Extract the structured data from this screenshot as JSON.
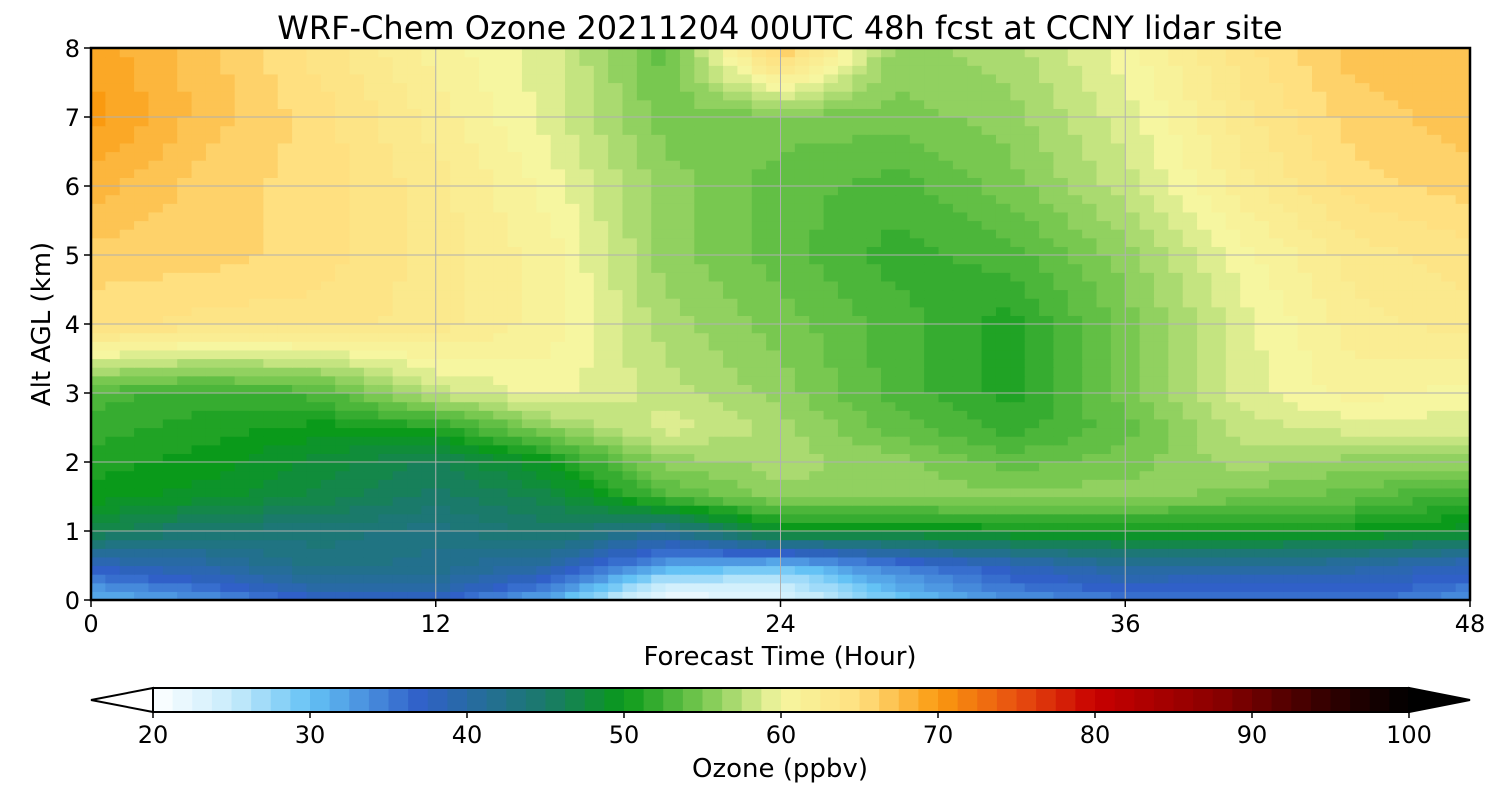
{
  "chart_data": {
    "type": "heatmap",
    "title": "WRF-Chem Ozone  20211204 00UTC 48h fcst at CCNY lidar site",
    "xlabel": "Forecast Time (Hour)",
    "ylabel": "Alt AGL (km)",
    "xlim": [
      0,
      48
    ],
    "ylim": [
      0,
      8
    ],
    "x_ticks": [
      0,
      12,
      24,
      36,
      48
    ],
    "x_tick_labels": [
      "0",
      "12",
      "24",
      "36",
      "48"
    ],
    "y_ticks": [
      0,
      1,
      2,
      3,
      4,
      5,
      6,
      7,
      8
    ],
    "y_tick_labels": [
      "0",
      "1",
      "2",
      "3",
      "4",
      "5",
      "6",
      "7",
      "8"
    ],
    "grid": true,
    "x": [
      0,
      4,
      8,
      12,
      16,
      20,
      24,
      28,
      32,
      36,
      40,
      44,
      48
    ],
    "y": [
      0,
      0.25,
      0.5,
      1,
      1.5,
      2,
      2.5,
      3,
      4,
      5,
      6,
      7,
      8
    ],
    "z": [
      [
        31,
        33,
        37,
        37,
        31,
        21,
        23,
        29,
        33,
        35,
        35,
        36,
        33
      ],
      [
        34,
        37,
        41,
        41,
        36,
        25,
        25,
        32,
        36,
        38,
        37,
        38,
        36
      ],
      [
        38,
        40,
        43,
        42,
        40,
        32,
        30,
        35,
        38,
        41,
        41,
        40,
        38
      ],
      [
        47,
        44,
        44,
        43,
        45,
        42,
        49,
        49,
        50,
        50,
        50,
        50,
        49
      ],
      [
        50,
        49,
        47,
        45,
        47,
        53,
        56,
        56,
        56,
        56,
        55,
        54,
        52
      ],
      [
        51,
        50,
        48,
        46,
        50,
        56,
        57,
        56,
        54,
        55,
        57,
        56,
        56
      ],
      [
        52,
        51,
        50,
        51,
        56,
        59,
        57,
        54,
        52,
        54,
        58,
        59,
        59
      ],
      [
        53,
        52,
        53,
        58,
        60,
        58,
        56,
        53,
        51,
        55,
        59,
        61,
        60
      ],
      [
        65,
        64,
        64,
        63,
        61,
        57,
        55,
        53,
        51,
        55,
        59,
        62,
        63
      ],
      [
        66,
        66,
        65,
        63,
        61,
        56,
        54,
        52,
        53,
        56,
        60,
        63,
        64
      ],
      [
        68,
        66,
        65,
        63,
        60,
        56,
        54,
        53,
        55,
        58,
        62,
        65,
        66
      ],
      [
        70,
        67,
        65,
        62,
        59,
        55,
        55,
        55,
        56,
        59,
        63,
        66,
        67
      ],
      [
        69,
        67,
        64,
        61,
        59,
        54,
        67,
        56,
        57,
        60,
        64,
        67,
        67
      ]
    ],
    "colorbar": {
      "label": "Ozone  (ppbv)",
      "range": [
        20,
        100
      ],
      "ticks": [
        20,
        30,
        40,
        50,
        60,
        70,
        80,
        90,
        100
      ],
      "tick_labels": [
        "20",
        "30",
        "40",
        "50",
        "60",
        "70",
        "80",
        "90",
        "100"
      ],
      "extend": "both",
      "colors": [
        "#ffffff",
        "#c8ecfb",
        "#64c2f5",
        "#3060c8",
        "#1a7a6a",
        "#0a9a1a",
        "#78c850",
        "#f6f6a0",
        "#ffe080",
        "#fa9a10",
        "#e85010",
        "#c80000",
        "#880000",
        "#300000",
        "#000000"
      ],
      "stops": [
        20,
        25,
        30,
        37,
        45,
        50,
        55,
        60,
        65,
        70,
        75,
        80,
        88,
        95,
        100
      ]
    }
  }
}
